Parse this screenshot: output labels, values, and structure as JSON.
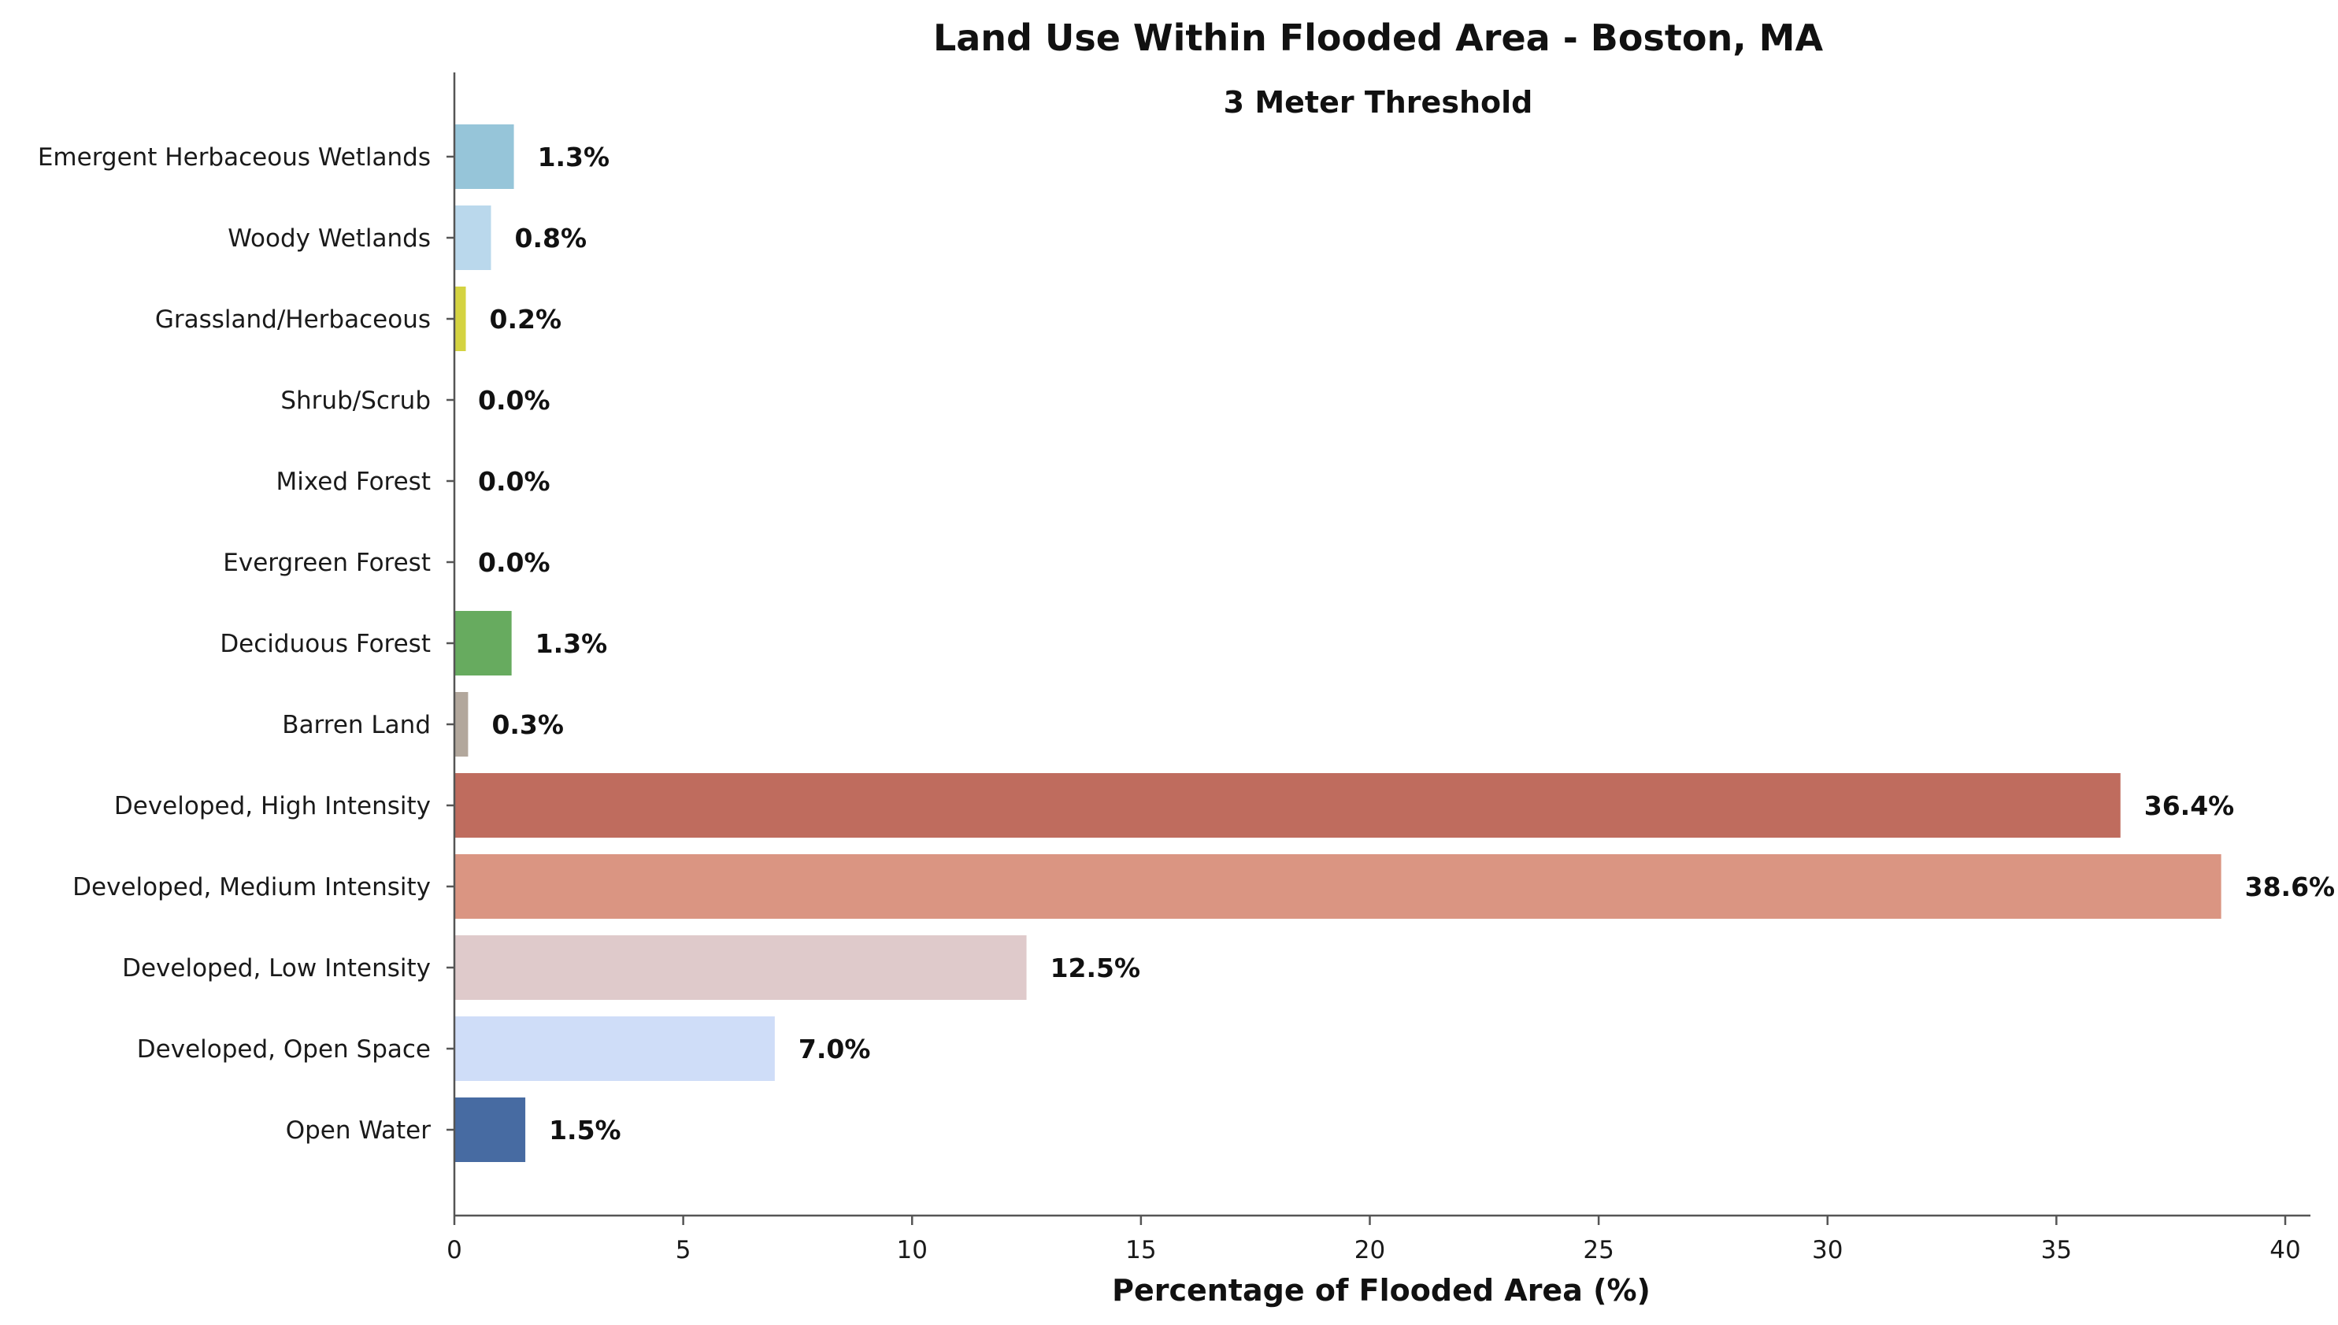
{
  "chart_data": {
    "type": "bar",
    "orientation": "horizontal",
    "title": "Land Use Within Flooded Area - Boston, MA",
    "subtitle": "3 Meter Threshold",
    "xlabel": "Percentage of Flooded Area (%)",
    "ylabel": "",
    "xlim": [
      0,
      40
    ],
    "xticks": [
      "0",
      "5",
      "10",
      "15",
      "20",
      "25",
      "30",
      "35",
      "40"
    ],
    "grid": false,
    "categories": [
      "Emergent Herbaceous Wetlands",
      "Woody Wetlands",
      "Grassland/Herbaceous",
      "Shrub/Scrub",
      "Mixed Forest",
      "Evergreen Forest",
      "Deciduous Forest",
      "Barren Land",
      "Developed, High Intensity",
      "Developed, Medium Intensity",
      "Developed, Low Intensity",
      "Developed, Open Space",
      "Open Water"
    ],
    "values": [
      1.3,
      0.8,
      0.25,
      0.0,
      0.0,
      0.0,
      1.25,
      0.3,
      36.4,
      38.6,
      12.5,
      7.0,
      1.55
    ],
    "value_labels": [
      "1.3%",
      "0.8%",
      "0.2%",
      "0.0%",
      "0.0%",
      "0.0%",
      "1.3%",
      "0.3%",
      "36.4%",
      "38.6%",
      "12.5%",
      "7.0%",
      "1.5%"
    ],
    "colors": [
      "#96c5d9",
      "#bad8ec",
      "#d4d341",
      "#cbbd7c",
      "#b7cd9c",
      "#40844a",
      "#67ab5f",
      "#b2a79c",
      "#bf6c5e",
      "#da9582",
      "#dfcacb",
      "#cfddf8",
      "#476ba2"
    ]
  }
}
